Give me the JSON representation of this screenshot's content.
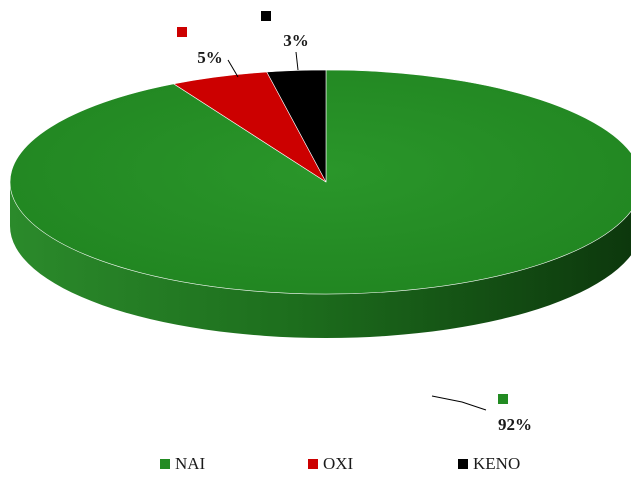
{
  "chart_data": {
    "type": "pie",
    "style": "3d",
    "categories": [
      "NAI",
      "OXI",
      "KENO"
    ],
    "values": [
      92,
      5,
      3
    ],
    "data_labels": [
      "92%",
      "5%",
      "3%"
    ],
    "colors": [
      "#228b22",
      "#cc0000",
      "#000000"
    ],
    "legend": {
      "position": "bottom",
      "entries": [
        "NAI",
        "OXI",
        "KENO"
      ]
    },
    "title": ""
  }
}
